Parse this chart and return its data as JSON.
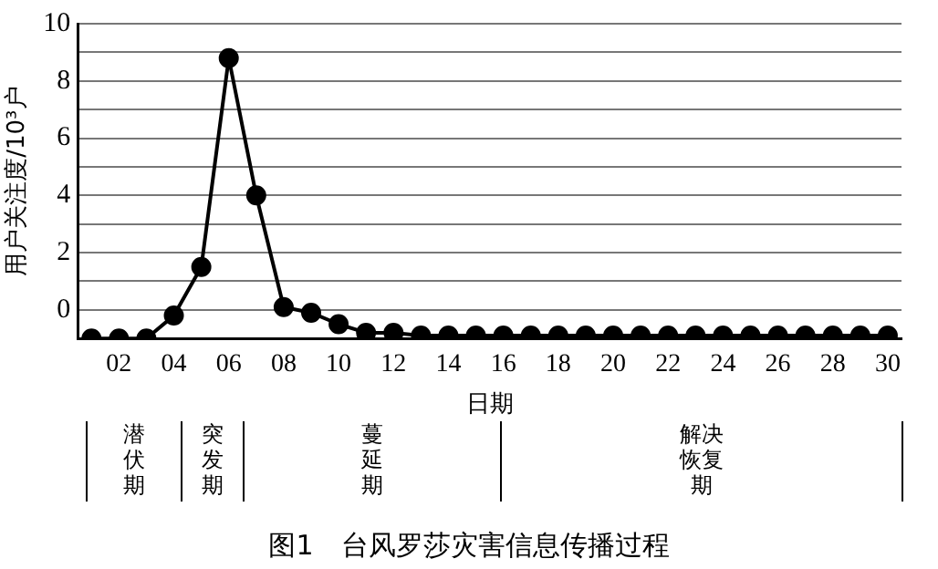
{
  "chart_data": {
    "type": "line",
    "title": "图1　台风罗莎灾害信息传播过程",
    "xlabel": "日期",
    "ylabel": "用户关注度/10³户",
    "categories": [
      null,
      "02",
      null,
      "04",
      null,
      "06",
      null,
      "08",
      null,
      "10",
      null,
      "12",
      null,
      "14",
      null,
      "16",
      null,
      "18",
      null,
      "20",
      null,
      "22",
      null,
      "24",
      null,
      "26",
      null,
      "28",
      null,
      "30"
    ],
    "series": [
      {
        "color": "#000000",
        "values": [
          -1,
          -1,
          -1,
          -0.2,
          1.5,
          8.8,
          4.0,
          0.1,
          -0.1,
          -0.5,
          -0.8,
          -0.8,
          -0.9,
          -0.9,
          -0.9,
          -0.9,
          -0.9,
          -0.9,
          -0.9,
          -0.9,
          -0.9,
          -0.9,
          -0.9,
          -0.9,
          -0.9,
          -0.9,
          -0.9,
          -0.9,
          -0.9,
          -0.9
        ]
      }
    ],
    "ylim": [
      -1,
      10
    ],
    "yticks": [
      {
        "value": -1,
        "label": null
      },
      0,
      {
        "value": 1,
        "label": null
      },
      2,
      {
        "value": 3,
        "label": null
      },
      4,
      {
        "value": 5,
        "label": null
      },
      6,
      {
        "value": 7,
        "label": null
      },
      8,
      {
        "value": 9,
        "label": null
      },
      10
    ],
    "grid": "y",
    "marker": "circle",
    "line_style": "solid",
    "legend": false,
    "annotations": [
      "潜伏期",
      "突发期",
      "蔓延期",
      "解决恢复期"
    ]
  }
}
